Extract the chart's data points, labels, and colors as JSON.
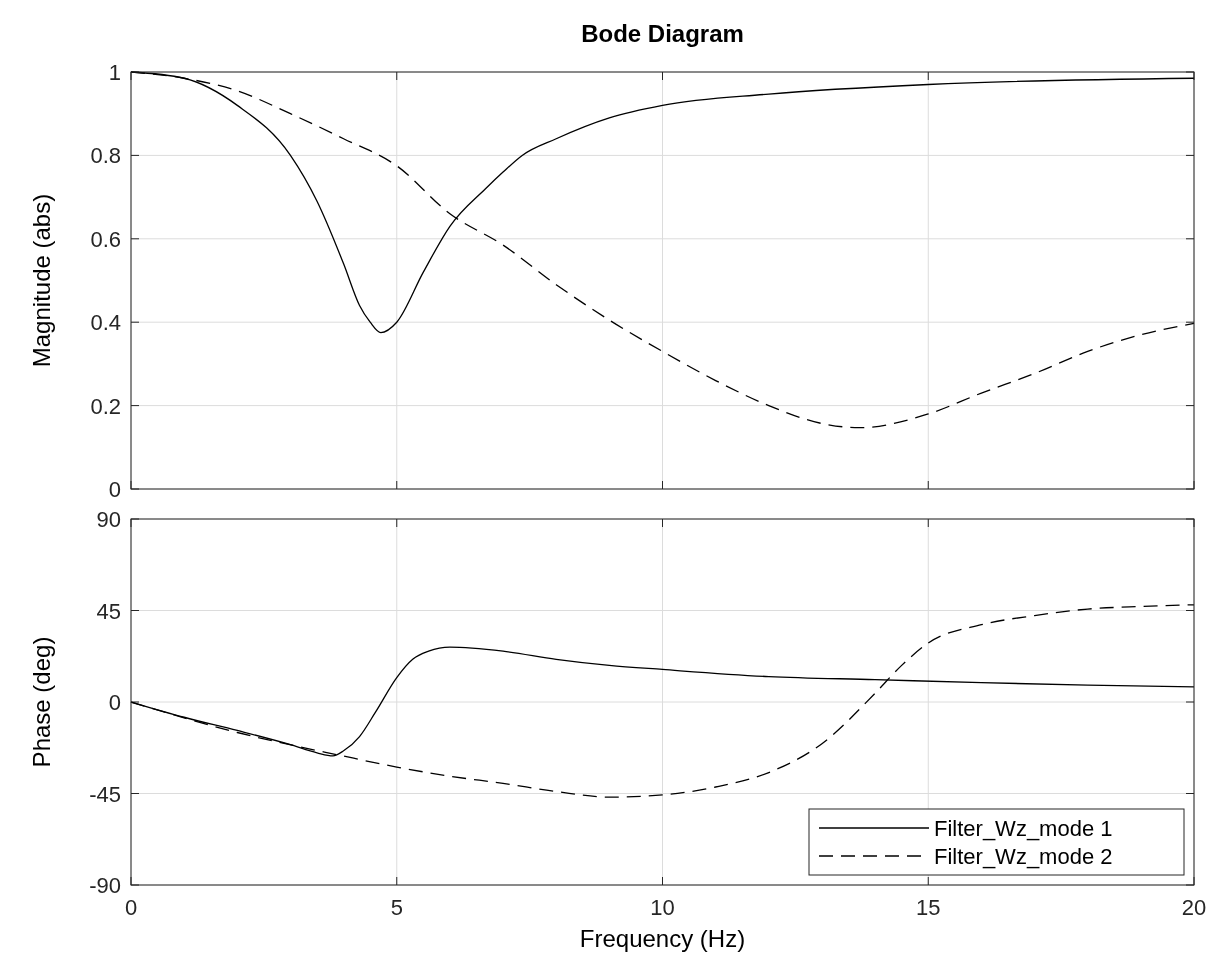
{
  "chart_data": [
    {
      "type": "line",
      "title": "Bode Diagram",
      "ylabel": "Magnitude (abs)",
      "xlim": [
        0,
        20
      ],
      "xticks": [
        0,
        5,
        10,
        15,
        20
      ],
      "ylim": [
        0,
        1
      ],
      "yticks": [
        0,
        0.2,
        0.4,
        0.6,
        0.8,
        1
      ],
      "grid": true,
      "tick_labels": "y",
      "legend": false,
      "series": [
        {
          "color": "#000000",
          "line_style": "solid",
          "x": [
            0,
            1,
            2,
            3,
            3.5,
            4,
            4.3,
            4.5,
            4.7,
            5,
            5.5,
            6,
            6.67,
            7,
            7.36,
            8,
            9,
            10,
            12,
            15,
            20
          ],
          "values": [
            1,
            0.985,
            0.92,
            0.8,
            0.69,
            0.54,
            0.44,
            0.4,
            0.375,
            0.4,
            0.52,
            0.63,
            0.72,
            0.76,
            0.8,
            0.84,
            0.89,
            0.92,
            0.947,
            0.97,
            0.985
          ]
        },
        {
          "color": "#000000",
          "line_style": "dashed",
          "x": [
            0,
            1,
            2,
            3,
            4,
            5,
            6,
            7,
            8,
            9,
            10,
            11,
            12,
            13,
            13.7,
            15,
            16,
            17,
            18,
            19,
            20
          ],
          "values": [
            1,
            0.985,
            0.955,
            0.9,
            0.84,
            0.775,
            0.66,
            0.585,
            0.49,
            0.405,
            0.33,
            0.26,
            0.2,
            0.157,
            0.147,
            0.18,
            0.23,
            0.277,
            0.33,
            0.37,
            0.397
          ]
        }
      ]
    },
    {
      "type": "line",
      "xlabel": "Frequency  (Hz)",
      "ylabel": "Phase (deg)",
      "xlim": [
        0,
        20
      ],
      "xticks": [
        0,
        5,
        10,
        15,
        20
      ],
      "ylim": [
        -90,
        90
      ],
      "yticks": [
        -90,
        -45,
        0,
        45,
        90
      ],
      "grid": true,
      "legend": "bottom right",
      "series": [
        {
          "name": "Filter_Wz_mode 1",
          "color": "#000000",
          "line_style": "solid",
          "x": [
            0,
            1,
            2,
            3,
            3.5,
            3.8,
            4,
            4.3,
            4.6,
            5,
            5.3,
            5.6,
            6,
            7,
            8,
            9,
            10,
            12,
            14,
            16,
            18,
            20
          ],
          "values": [
            0,
            -7.5,
            -14,
            -21,
            -25,
            -26.5,
            -24,
            -17,
            -5,
            12,
            21,
            25,
            27,
            25,
            21,
            18,
            16,
            12.5,
            11,
            9.5,
            8.3,
            7.4
          ]
        },
        {
          "name": "Filter_Wz_mode 2",
          "color": "#000000",
          "line_style": "dashed",
          "x": [
            0,
            2,
            4,
            5,
            6,
            7,
            8,
            9,
            10,
            11,
            12,
            13,
            14,
            14.5,
            15,
            16,
            17,
            18,
            19,
            20
          ],
          "values": [
            0,
            -15,
            -26.6,
            -32,
            -36.5,
            -40,
            -44,
            -46.8,
            -45.7,
            -41.8,
            -34.7,
            -20.5,
            4.3,
            18,
            29,
            38,
            42.5,
            45.7,
            47,
            47.8
          ]
        }
      ]
    }
  ]
}
